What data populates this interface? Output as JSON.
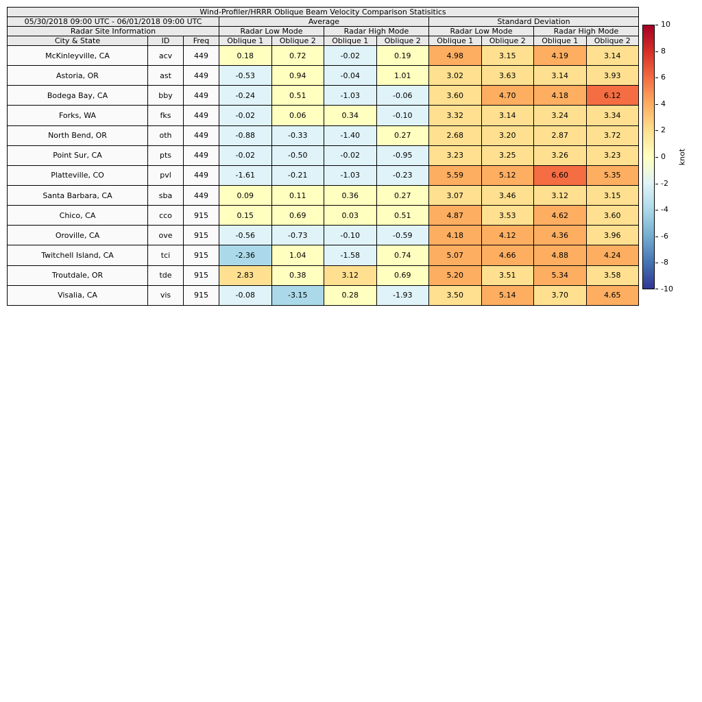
{
  "title": "Wind-Profiler/HRRR Oblique Beam Velocity Comparison Statisitics",
  "header": {
    "date_range": "05/30/2018 09:00 UTC - 06/01/2018 09:00 UTC",
    "group_average": "Average",
    "group_std": "Standard Deviation",
    "site_info": "Radar Site Information",
    "low_mode": "Radar Low Mode",
    "high_mode": "Radar High Mode",
    "col_city": "City & State",
    "col_id": "ID",
    "col_freq": "Freq",
    "col_oblique1": "Oblique 1",
    "col_oblique2": "Oblique 2"
  },
  "colorbar": {
    "label": "knot",
    "min": -10,
    "max": 10,
    "ticks": [
      10,
      8,
      6,
      4,
      2,
      0,
      -2,
      -4,
      -6,
      -8,
      -10
    ],
    "colormap": [
      "#313695",
      "#4575b4",
      "#74add1",
      "#abd9e9",
      "#e0f3f8",
      "#ffffbf",
      "#fee090",
      "#fdae61",
      "#f46d43",
      "#d73027",
      "#a50026"
    ]
  },
  "chart_data": {
    "type": "heatmap",
    "title": "Wind-Profiler/HRRR Oblique Beam Velocity Comparison Statisitics",
    "units": "knot",
    "color_scale_range": [
      -10,
      10
    ],
    "value_columns": [
      "Average / Radar Low Mode / Oblique 1",
      "Average / Radar Low Mode / Oblique 2",
      "Average / Radar High Mode / Oblique 1",
      "Average / Radar High Mode / Oblique 2",
      "Standard Deviation / Radar Low Mode / Oblique 1",
      "Standard Deviation / Radar Low Mode / Oblique 2",
      "Standard Deviation / Radar High Mode / Oblique 1",
      "Standard Deviation / Radar High Mode / Oblique 2"
    ],
    "rows": [
      {
        "city": "McKinleyville, CA",
        "id": "acv",
        "freq": 449,
        "values": [
          0.18,
          0.72,
          -0.02,
          0.19,
          4.98,
          3.15,
          4.19,
          3.14
        ]
      },
      {
        "city": "Astoria, OR",
        "id": "ast",
        "freq": 449,
        "values": [
          -0.53,
          0.94,
          -0.04,
          1.01,
          3.02,
          3.63,
          3.14,
          3.93
        ]
      },
      {
        "city": "Bodega Bay, CA",
        "id": "bby",
        "freq": 449,
        "values": [
          -0.24,
          0.51,
          -1.03,
          -0.06,
          3.6,
          4.7,
          4.18,
          6.12
        ]
      },
      {
        "city": "Forks, WA",
        "id": "fks",
        "freq": 449,
        "values": [
          -0.02,
          0.06,
          0.34,
          -0.1,
          3.32,
          3.14,
          3.24,
          3.34
        ]
      },
      {
        "city": "North Bend, OR",
        "id": "oth",
        "freq": 449,
        "values": [
          -0.88,
          -0.33,
          -1.4,
          0.27,
          2.68,
          3.2,
          2.87,
          3.72
        ]
      },
      {
        "city": "Point Sur, CA",
        "id": "pts",
        "freq": 449,
        "values": [
          -0.02,
          -0.5,
          -0.02,
          -0.95,
          3.23,
          3.25,
          3.26,
          3.23
        ]
      },
      {
        "city": "Platteville, CO",
        "id": "pvl",
        "freq": 449,
        "values": [
          -1.61,
          -0.21,
          -1.03,
          -0.23,
          5.59,
          5.12,
          6.6,
          5.35
        ]
      },
      {
        "city": "Santa Barbara, CA",
        "id": "sba",
        "freq": 449,
        "values": [
          0.09,
          0.11,
          0.36,
          0.27,
          3.07,
          3.46,
          3.12,
          3.15
        ]
      },
      {
        "city": "Chico, CA",
        "id": "cco",
        "freq": 915,
        "values": [
          0.15,
          0.69,
          0.03,
          0.51,
          4.87,
          3.53,
          4.62,
          3.6
        ]
      },
      {
        "city": "Oroville, CA",
        "id": "ove",
        "freq": 915,
        "values": [
          -0.56,
          -0.73,
          -0.1,
          -0.59,
          4.18,
          4.12,
          4.36,
          3.96
        ]
      },
      {
        "city": "Twitchell Island, CA",
        "id": "tci",
        "freq": 915,
        "values": [
          -2.36,
          1.04,
          -1.58,
          0.74,
          5.07,
          4.66,
          4.88,
          4.24
        ]
      },
      {
        "city": "Troutdale, OR",
        "id": "tde",
        "freq": 915,
        "values": [
          2.83,
          0.38,
          3.12,
          0.69,
          5.2,
          3.51,
          5.34,
          3.58
        ]
      },
      {
        "city": "Visalia, CA",
        "id": "vis",
        "freq": 915,
        "values": [
          -0.08,
          -3.15,
          0.28,
          -1.93,
          3.5,
          5.14,
          3.7,
          4.65
        ]
      }
    ]
  }
}
